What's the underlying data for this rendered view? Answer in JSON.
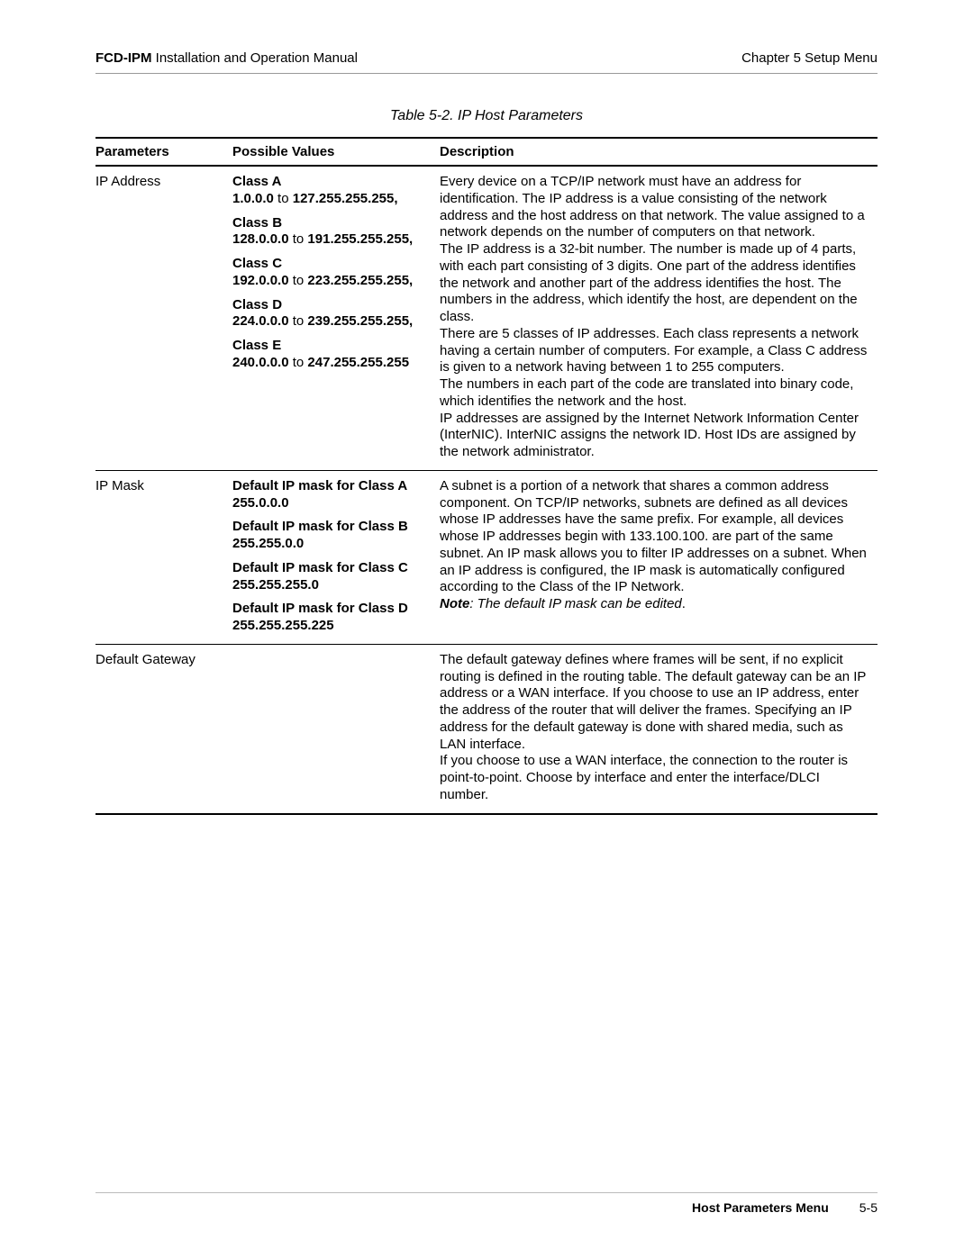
{
  "header": {
    "product": "FCD-IPM",
    "manual": " Installation and Operation Manual",
    "chapter": "Chapter 5  Setup Menu"
  },
  "table": {
    "caption": "Table 5-2.  IP Host Parameters",
    "columns": {
      "param": "Parameters",
      "values": "Possible Values",
      "desc": "Description"
    },
    "rows": [
      {
        "param": "IP Address",
        "values": [
          {
            "title": "Class A",
            "range_a": "1.0.0.0",
            "sep": " to ",
            "range_b": "127.255.255.255,",
            "trail": ""
          },
          {
            "title": "Class B",
            "range_a": "128.0.0.0",
            "sep": " to ",
            "range_b": "191.255.255.255,",
            "trail": ""
          },
          {
            "title": "Class C",
            "range_a": "192.0.0.0",
            "sep": " to ",
            "range_b": "223.255.255.255,",
            "trail": ""
          },
          {
            "title": "Class D",
            "range_a": "224.0.0.0",
            "sep": " to ",
            "range_b": "239.255.255.255,",
            "trail": ""
          },
          {
            "title": "Class E",
            "range_a": "240.0.0.0",
            "sep": " to ",
            "range_b": "247.255.255.255",
            "trail": ""
          }
        ],
        "desc": "Every device on a TCP/IP network must have an address for identification. The IP address is a value consisting of the network address and the host address on that network. The value assigned to a network depends on the number of computers on that network.\nThe IP address is a 32-bit number. The number is made up of 4 parts, with each part consisting of 3 digits. One part of the address identifies the network and another part of the address identifies the host. The numbers in the address, which identify the host, are dependent on the class.\nThere are 5 classes of IP addresses. Each class represents a network having a certain number of computers. For example, a Class C address is given to a network having between 1 to 255 computers.\nThe numbers in each part of the code are translated into binary code, which identifies the network and the host.\nIP addresses are assigned by the Internet Network Information Center (InterNIC). InterNIC assigns the network ID. Host IDs are assigned by the network administrator."
      },
      {
        "param": "IP Mask",
        "values": [
          {
            "title": "Default IP mask for Class A",
            "range_a": "255.0.0.0",
            "sep": "",
            "range_b": "",
            "trail": ""
          },
          {
            "title": "Default IP mask for Class B",
            "range_a": "255.255.0.0",
            "sep": "",
            "range_b": "",
            "trail": ""
          },
          {
            "title": "Default IP mask for Class C",
            "range_a": "255.255.255.0",
            "sep": "",
            "range_b": "",
            "trail": ""
          },
          {
            "title": "Default IP mask for Class D",
            "range_a": "255.255.255.225",
            "sep": "",
            "range_b": "",
            "trail": ""
          }
        ],
        "desc": "A subnet is a portion of a network that shares a common address component. On TCP/IP networks, subnets are defined as all devices whose IP addresses have the same prefix. For example, all devices whose IP addresses begin with 133.100.100. are part of the same subnet. An IP mask allows you to filter IP addresses on a subnet. When an IP address is configured, the IP mask is automatically configured according to the Class of the IP Network.",
        "note_label": "Note",
        "note_text": ": The default IP mask can be edited",
        "note_period": "."
      },
      {
        "param": "Default Gateway",
        "values": [],
        "desc": "The default gateway defines where frames will be sent, if no explicit routing is defined in the routing table. The default gateway can be an IP address or a WAN interface. If you choose to use an IP address, enter the address of the router that will deliver the frames. Specifying an IP address for the default gateway is done with shared media, such as LAN interface.\nIf you choose to use a WAN interface, the connection to the router is point-to-point. Choose by interface and enter the interface/DLCI number."
      }
    ]
  },
  "footer": {
    "section": "Host Parameters Menu",
    "page": "5-5"
  }
}
